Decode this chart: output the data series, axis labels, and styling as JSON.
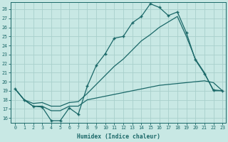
{
  "xlabel": "Humidex (Indice chaleur)",
  "bg_color": "#c8e8e4",
  "line_color": "#1a6868",
  "grid_color": "#a8d0cc",
  "xlim_min": -0.5,
  "xlim_max": 23.4,
  "ylim_min": 15.5,
  "ylim_max": 28.8,
  "xticks": [
    0,
    1,
    2,
    3,
    4,
    5,
    6,
    7,
    8,
    9,
    10,
    11,
    12,
    13,
    14,
    15,
    16,
    17,
    18,
    19,
    20,
    21,
    22,
    23
  ],
  "yticks": [
    16,
    17,
    18,
    19,
    20,
    21,
    22,
    23,
    24,
    25,
    26,
    27,
    28
  ],
  "line1_x": [
    0,
    1,
    2,
    3,
    4,
    5,
    6,
    7,
    8,
    9,
    10,
    11,
    12,
    13,
    14,
    15,
    16,
    17,
    18,
    19,
    20,
    21,
    22,
    23
  ],
  "line1_y": [
    19.2,
    18.0,
    17.3,
    17.2,
    15.7,
    15.7,
    17.1,
    16.4,
    19.5,
    21.8,
    23.1,
    24.8,
    25.0,
    26.5,
    27.2,
    28.6,
    28.2,
    27.3,
    27.7,
    25.4,
    22.4,
    20.9,
    19.1,
    19.0
  ],
  "line2_x": [
    0,
    1,
    2,
    3,
    4,
    5,
    6,
    7,
    8,
    9,
    10,
    11,
    12,
    13,
    14,
    15,
    16,
    17,
    18,
    19,
    20,
    21,
    22,
    23
  ],
  "line2_y": [
    19.2,
    18.0,
    17.3,
    17.3,
    16.8,
    16.8,
    17.3,
    17.3,
    18.0,
    18.2,
    18.4,
    18.6,
    18.8,
    19.0,
    19.2,
    19.4,
    19.6,
    19.7,
    19.8,
    19.9,
    20.0,
    20.1,
    19.9,
    19.0
  ],
  "line3_x": [
    0,
    1,
    2,
    3,
    4,
    5,
    6,
    7,
    8,
    9,
    10,
    11,
    12,
    13,
    14,
    15,
    16,
    17,
    18,
    19,
    20,
    21,
    22,
    23
  ],
  "line3_y": [
    19.2,
    18.0,
    17.6,
    17.7,
    17.3,
    17.3,
    17.7,
    17.8,
    18.7,
    19.7,
    20.7,
    21.7,
    22.5,
    23.5,
    24.5,
    25.2,
    26.0,
    26.6,
    27.2,
    25.0,
    22.5,
    21.0,
    19.0,
    19.0
  ]
}
